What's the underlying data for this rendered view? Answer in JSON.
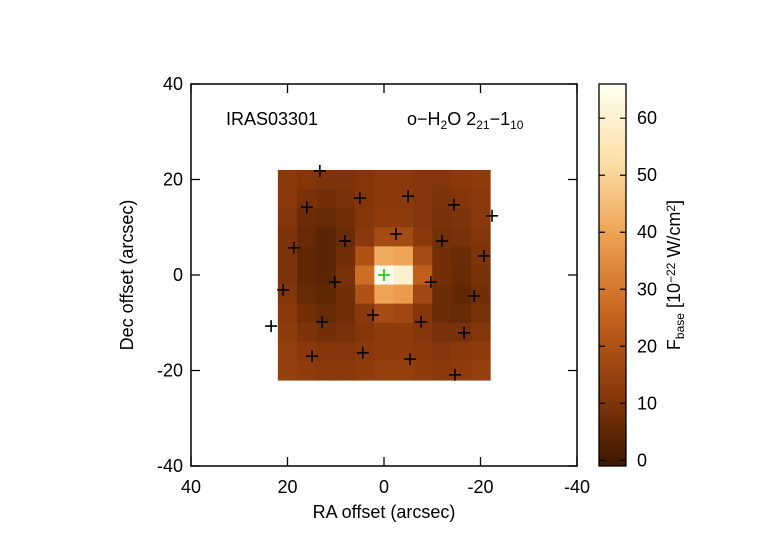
{
  "chart_data": {
    "type": "heatmap",
    "xlabel": "RA offset (arcsec)",
    "ylabel": "Dec offset (arcsec)",
    "xlim": [
      40,
      -40
    ],
    "ylim": [
      -40,
      40
    ],
    "xticks": [
      40,
      20,
      0,
      -20,
      -40
    ],
    "yticks": [
      -40,
      -20,
      0,
      20,
      40
    ],
    "annotations": [
      {
        "segments": [
          {
            "text": "IRAS03301",
            "style": "normal"
          }
        ]
      },
      {
        "segments": [
          {
            "text": "o−H",
            "style": "normal"
          },
          {
            "text": "2",
            "style": "sub"
          },
          {
            "text": "O 2",
            "style": "normal"
          },
          {
            "text": "21",
            "style": "sub"
          },
          {
            "text": "−1",
            "style": "normal"
          },
          {
            "text": "10",
            "style": "sub"
          }
        ]
      }
    ],
    "x": [
      20,
      16,
      12,
      8,
      4,
      0,
      -4,
      -8,
      -12,
      -16,
      -20
    ],
    "y": [
      20,
      16,
      12,
      8,
      4,
      0,
      -4,
      -8,
      -12,
      -16,
      -20
    ],
    "z": [
      [
        12,
        11,
        10,
        10,
        11,
        12,
        12,
        11,
        11,
        12,
        13
      ],
      [
        12,
        9,
        8,
        9,
        11,
        12,
        12,
        11,
        10,
        11,
        12
      ],
      [
        11,
        7,
        6,
        8,
        11,
        13,
        13,
        11,
        9,
        10,
        12
      ],
      [
        10,
        6,
        4,
        7,
        12,
        18,
        18,
        12,
        8,
        9,
        11
      ],
      [
        10,
        5,
        4,
        8,
        20,
        42,
        40,
        18,
        8,
        7,
        10
      ],
      [
        10,
        5,
        4,
        9,
        28,
        65,
        60,
        24,
        8,
        6,
        9
      ],
      [
        11,
        6,
        5,
        8,
        20,
        40,
        38,
        17,
        7,
        5,
        8
      ],
      [
        12,
        8,
        6,
        8,
        12,
        18,
        17,
        11,
        7,
        6,
        9
      ],
      [
        13,
        10,
        8,
        9,
        11,
        13,
        13,
        11,
        9,
        9,
        11
      ],
      [
        14,
        12,
        11,
        11,
        12,
        13,
        13,
        12,
        11,
        12,
        13
      ],
      [
        14,
        13,
        12,
        12,
        13,
        14,
        14,
        13,
        12,
        13,
        14
      ]
    ],
    "clim": [
      -1,
      66
    ],
    "cticks": [
      0,
      10,
      20,
      30,
      40,
      50,
      60
    ],
    "colormap": [
      "#3c1800",
      "#8c3a0c",
      "#c8641e",
      "#eda050",
      "#fde0a8",
      "#fffff0"
    ],
    "clabel": [
      {
        "text": "F",
        "style": "normal"
      },
      {
        "text": "base",
        "style": "sub"
      },
      {
        "text": " [10",
        "style": "normal"
      },
      {
        "text": "−22",
        "style": "sup"
      },
      {
        "text": " W/cm",
        "style": "normal"
      },
      {
        "text": "2",
        "style": "sup"
      },
      {
        "text": "]",
        "style": "normal"
      }
    ],
    "series": [
      {
        "color": "#000000",
        "x": [
          13.3,
          16.0,
          5.0,
          -5.0,
          -14.5,
          -22.4,
          18.7,
          8.1,
          -2.5,
          -12.0,
          -20.7,
          20.9,
          10.2,
          -9.7,
          -18.7,
          23.4,
          12.8,
          2.3,
          -7.7,
          -16.6,
          14.9,
          4.4,
          -5.4,
          -14.7
        ],
        "y": [
          21.8,
          14.2,
          16.1,
          16.5,
          14.7,
          12.4,
          5.7,
          7.1,
          8.6,
          7.1,
          4.0,
          -3.1,
          -1.5,
          -1.5,
          -4.4,
          -10.7,
          -9.8,
          -8.4,
          -9.8,
          -12.1,
          -17.0,
          -16.3,
          -17.6,
          -20.9
        ]
      },
      {
        "color": "#00d000",
        "x": [
          0
        ],
        "y": [
          0
        ]
      }
    ]
  }
}
